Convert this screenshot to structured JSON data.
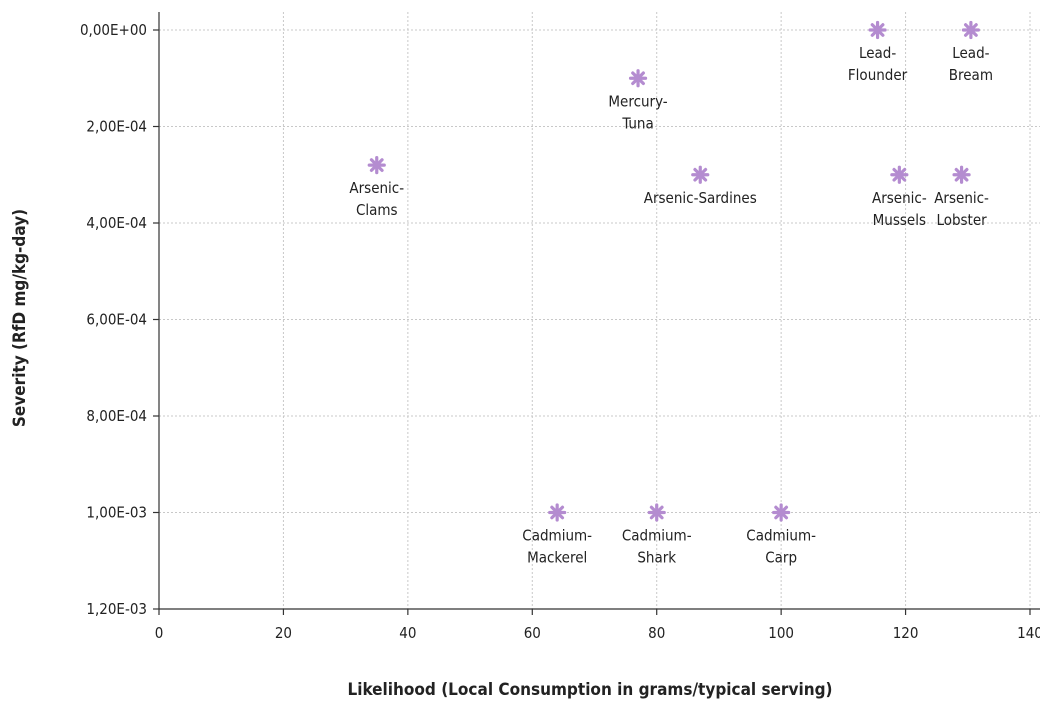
{
  "chart_data": {
    "type": "scatter",
    "xlabel": "Likelihood (Local Consumption in grams/typical serving)",
    "ylabel": "Severity (RfD mg/kg-day)",
    "xlim": [
      0,
      140
    ],
    "ylim": [
      0,
      0.0012
    ],
    "y_axis_inverted": true,
    "x_ticks": [
      "0",
      "20",
      "40",
      "60",
      "80",
      "100",
      "120",
      "140"
    ],
    "y_ticks": [
      "0,00E+00",
      "2,00E-04",
      "4,00E-04",
      "6,00E-04",
      "8,00E-04",
      "1,00E-03",
      "1,20E-03"
    ],
    "grid": true,
    "marker_color": "#b48cd0",
    "points": [
      {
        "label": [
          "Arsenic-",
          "Clams"
        ],
        "x": 35,
        "y": 0.00028
      },
      {
        "label": [
          "Mercury-",
          "Tuna"
        ],
        "x": 77,
        "y": 0.0001
      },
      {
        "label": [
          "Arsenic-Sardines"
        ],
        "x": 87,
        "y": 0.0003
      },
      {
        "label": [
          "Lead-",
          "Flounder"
        ],
        "x": 115.5,
        "y": 0
      },
      {
        "label": [
          "Lead-",
          "Bream"
        ],
        "x": 130.5,
        "y": 0
      },
      {
        "label": [
          "Arsenic-",
          "Mussels"
        ],
        "x": 119,
        "y": 0.0003
      },
      {
        "label": [
          "Arsenic-",
          "Lobster"
        ],
        "x": 129,
        "y": 0.0003
      },
      {
        "label": [
          "Cadmium-",
          "Mackerel"
        ],
        "x": 64,
        "y": 0.001
      },
      {
        "label": [
          "Cadmium-",
          "Shark"
        ],
        "x": 80,
        "y": 0.001
      },
      {
        "label": [
          "Cadmium-",
          "Carp"
        ],
        "x": 100,
        "y": 0.001
      }
    ]
  }
}
